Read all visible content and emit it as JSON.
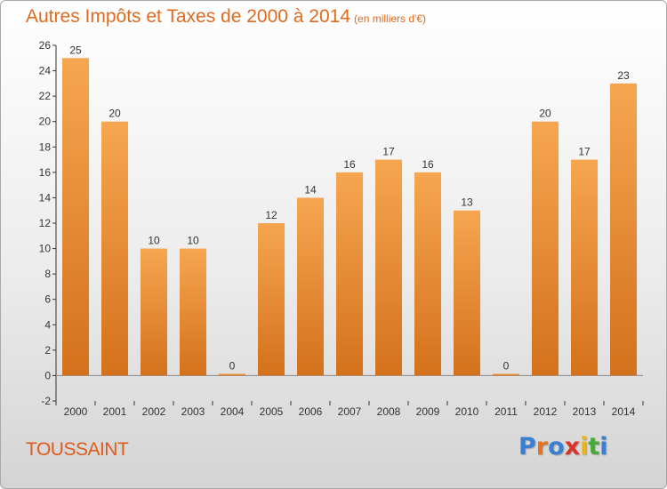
{
  "header": {
    "title": "Autres Impôts et Taxes de 2000 à 2014",
    "unit": "(en milliers d'€)"
  },
  "footer": {
    "city": "TOUSSAINT",
    "logo": "Proxiti"
  },
  "colors": {
    "bar_top": "#f6a650",
    "bar_bottom": "#d4711c",
    "title": "#e06a1e",
    "city": "#de5b1c",
    "logo": [
      "#3a7fd0",
      "#e8731c",
      "#3a7fd0",
      "#d8322c",
      "#e8b41c",
      "#4aa83a",
      "#3a7fd0"
    ]
  },
  "chart_data": {
    "type": "bar",
    "title": "Autres Impôts et Taxes de 2000 à 2014",
    "subtitle": "(en milliers d'€)",
    "categories": [
      "2000",
      "2001",
      "2002",
      "2003",
      "2004",
      "2005",
      "2006",
      "2007",
      "2008",
      "2009",
      "2010",
      "2011",
      "2012",
      "2013",
      "2014"
    ],
    "values": [
      25,
      20,
      10,
      10,
      0,
      12,
      14,
      16,
      17,
      16,
      13,
      0,
      20,
      17,
      23
    ],
    "ylim": [
      -2,
      26
    ],
    "yticks": [
      -2,
      0,
      2,
      4,
      6,
      8,
      10,
      12,
      14,
      16,
      18,
      20,
      22,
      24,
      26
    ],
    "grid": false,
    "legend": "none"
  }
}
